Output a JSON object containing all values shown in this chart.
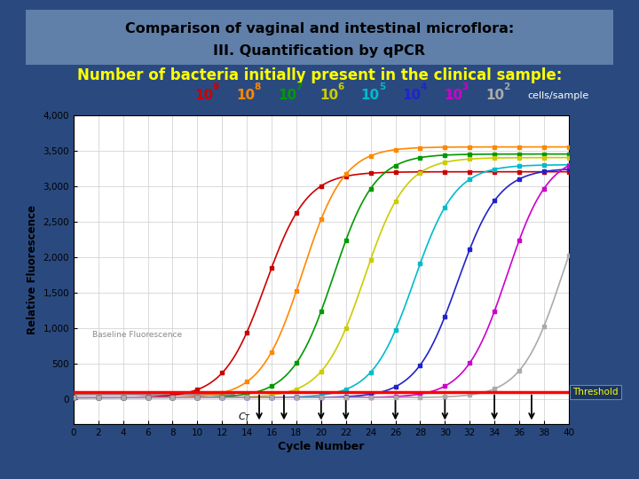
{
  "title_line1": "Comparison of vaginal and intestinal microflora:",
  "title_line2": "III. Quantification by qPCR",
  "subtitle": "Number of bacteria initially present in the clinical sample:",
  "bg_color": "#2a4a7f",
  "title_box_color": "#6080aa",
  "legend_text_colors": [
    "#cc0000",
    "#ff8800",
    "#009900",
    "#cccc00",
    "#00bbcc",
    "#2222cc",
    "#9900bb",
    "#aaaaaa"
  ],
  "threshold_y": 100,
  "ct_arrows_x": [
    15,
    17,
    20,
    22,
    26,
    30,
    34,
    37
  ],
  "xlim": [
    0,
    40
  ],
  "ylim": [
    0,
    4000
  ],
  "xlabel": "Cycle Number",
  "ylabel": "Relative Fluorescence",
  "xticks": [
    0,
    2,
    4,
    6,
    8,
    10,
    12,
    14,
    16,
    18,
    20,
    22,
    24,
    26,
    28,
    30,
    32,
    34,
    36,
    38,
    40
  ],
  "yticks": [
    0,
    500,
    1000,
    1500,
    2000,
    2500,
    3000,
    3500,
    4000
  ],
  "ytick_labels": [
    "0",
    "500",
    "1,000",
    "1,500",
    "2,000",
    "2,500",
    "3,000",
    "3,500",
    "4,000"
  ],
  "curves": [
    {
      "x0": 15.5,
      "color": "#cc0000",
      "L": 3200,
      "k": 0.6
    },
    {
      "x0": 18.5,
      "color": "#ff8800",
      "L": 3550,
      "k": 0.6
    },
    {
      "x0": 21.0,
      "color": "#009900",
      "L": 3450,
      "k": 0.6
    },
    {
      "x0": 23.5,
      "color": "#cccc00",
      "L": 3400,
      "k": 0.6
    },
    {
      "x0": 27.5,
      "color": "#00bbcc",
      "L": 3300,
      "k": 0.6
    },
    {
      "x0": 31.0,
      "color": "#2222cc",
      "L": 3250,
      "k": 0.6
    },
    {
      "x0": 35.0,
      "color": "#cc00cc",
      "L": 3450,
      "k": 0.6
    },
    {
      "x0": 39.5,
      "color": "#aaaaaa",
      "L": 3500,
      "k": 0.6
    }
  ]
}
